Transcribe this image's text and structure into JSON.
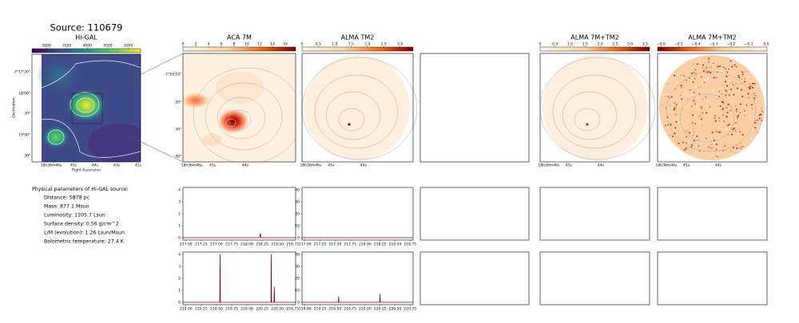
{
  "title": "Source: 110679",
  "maps": [
    {
      "title": "Hi-GAL",
      "cbar": {
        "range": [
          2650,
          5300
        ],
        "ticks": [
          3000,
          3500,
          4000,
          4500,
          5000
        ]
      },
      "yticks": [
        "-7°17'30\"",
        "18'00\"",
        "30\"",
        "19'00\"",
        "30\""
      ],
      "xticks": [
        "18h36m46s",
        "45s",
        "44s",
        "43s",
        "42s"
      ],
      "ylabel": "Declination",
      "xlabel": "Right Ascension"
    },
    {
      "title": "ACA 7M",
      "cbar": {
        "range": [
          0,
          17.6
        ],
        "ticks": [
          0,
          2,
          4,
          6,
          8,
          10,
          12,
          14,
          16
        ]
      },
      "yticks": [
        "-7°18'10\"",
        "20\"",
        "30\"",
        "40\""
      ],
      "xticks": [
        "18h36m46s",
        "45s",
        "44s"
      ]
    },
    {
      "title": "ALMA TM2",
      "cbar": {
        "range": [
          0,
          3.4
        ],
        "ticks": [
          0,
          0.5,
          {
            "value": 1,
            "label": "1.0"
          },
          1.5,
          {
            "value": 2,
            "label": "2.0"
          },
          2.5,
          {
            "value": 3,
            "label": "3.0"
          }
        ]
      },
      "xticks": [
        "18h36m46s",
        "45s",
        "44s"
      ]
    },
    {
      "title": "ALMA 7M+TM2",
      "cbar": {
        "range": [
          0,
          3.65
        ],
        "ticks": [
          0,
          0.5,
          {
            "value": 1,
            "label": "1.0"
          },
          1.5,
          {
            "value": 2,
            "label": "2.0"
          },
          2.5,
          {
            "value": 3,
            "label": "3.0"
          },
          3.5
        ]
      },
      "xticks": [
        "18h36m46s",
        "45s",
        "44s"
      ]
    },
    {
      "title": "ALMA 7M+TM2",
      "cbar": {
        "range": [
          -0.62,
          0.005
        ],
        "ticks": [
          {
            "value": -0.6,
            "label": "−0.6"
          },
          {
            "value": -0.5,
            "label": "−0.5"
          },
          {
            "value": -0.4,
            "label": "−0.4"
          },
          {
            "value": -0.3,
            "label": "−0.3"
          },
          {
            "value": -0.2,
            "label": "−0.2"
          },
          {
            "value": -0.1,
            "label": "−0.1"
          },
          {
            "value": 0,
            "label": "0.0"
          }
        ]
      },
      "xticks": [
        "18h36m46s",
        "45s",
        "44s"
      ]
    }
  ],
  "params": {
    "heading": "Physical parameters of Hi-GAL source:",
    "lines": [
      "Distance: 5878 pc",
      "Mass: 877.1 Msun",
      "Luminosity: 1105.7 Lsun",
      "Surface density: 0.56 g/cm^2",
      "L/M (evolution): 1.26 Lsun/Msun",
      "Bolometric temperature: 27.4 K"
    ]
  },
  "chart_data": [
    {
      "type": "line",
      "color": "#8b0000",
      "xlim": [
        216.95,
        218.8
      ],
      "ylim": [
        -0.2,
        4.2
      ],
      "x": [
        216.95,
        218.21,
        218.22,
        218.23,
        218.8
      ],
      "values": [
        0,
        0,
        0.35,
        0,
        0
      ],
      "yticks": [
        0,
        1,
        2,
        3,
        4
      ],
      "xticks": [
        {
          "value": 217,
          "label": "217.00"
        },
        {
          "value": 217.25,
          "label": "217.25"
        },
        {
          "value": 217.5,
          "label": "217.50"
        },
        {
          "value": 217.75,
          "label": "217.75"
        },
        {
          "value": 218,
          "label": "218.00"
        },
        {
          "value": 218.25,
          "label": "218.25"
        },
        {
          "value": 218.5,
          "label": "218.50"
        },
        {
          "value": 218.75,
          "label": "218.75"
        }
      ]
    },
    {
      "type": "line",
      "color": "#8b0000",
      "xlim": [
        216.95,
        218.8
      ],
      "ylim": [
        -2,
        42
      ],
      "x": [
        216.95,
        218.8
      ],
      "values": [
        0,
        0
      ],
      "yticks": [
        0,
        10,
        20,
        30,
        40
      ],
      "xticks": [
        {
          "value": 217,
          "label": "217.00"
        },
        {
          "value": 217.25,
          "label": "217.25"
        },
        {
          "value": 217.5,
          "label": "217.50"
        },
        {
          "value": 217.75,
          "label": "217.75"
        },
        {
          "value": 218,
          "label": "218.00"
        },
        {
          "value": 218.25,
          "label": "218.25"
        },
        {
          "value": 218.5,
          "label": "218.50"
        },
        {
          "value": 218.75,
          "label": "218.75"
        }
      ]
    },
    {
      "type": "line",
      "color": "#8b0000",
      "xlim": [
        218.95,
        220.8
      ],
      "ylim": [
        -0.2,
        4.2
      ],
      "x": [
        218.95,
        219.555,
        219.56,
        219.565,
        220.395,
        220.4,
        220.405,
        220.445,
        220.45,
        220.455,
        220.8
      ],
      "values": [
        0,
        0,
        4,
        0,
        0,
        4,
        0,
        0,
        1.3,
        0,
        0
      ],
      "yticks": [
        0,
        1,
        2,
        3,
        4
      ],
      "xticks": [
        {
          "value": 219,
          "label": "219.00"
        },
        {
          "value": 219.25,
          "label": "219.25"
        },
        {
          "value": 219.5,
          "label": "219.50"
        },
        {
          "value": 219.75,
          "label": "219.75"
        },
        {
          "value": 220,
          "label": "220.00"
        },
        {
          "value": 220.25,
          "label": "220.25"
        },
        {
          "value": 220.5,
          "label": "220.50"
        },
        {
          "value": 220.75,
          "label": "220.75"
        }
      ]
    },
    {
      "type": "line",
      "color": "#8b0000",
      "xlim": [
        218.95,
        220.8
      ],
      "ylim": [
        -2,
        42
      ],
      "x": [
        218.95,
        219.555,
        219.56,
        219.565,
        220.245,
        220.25,
        220.255,
        220.8
      ],
      "values": [
        0,
        0,
        5,
        0,
        0,
        7,
        0,
        0
      ],
      "yticks": [
        0,
        10,
        20,
        30,
        40
      ],
      "xticks": [
        {
          "value": 219,
          "label": "219.00"
        },
        {
          "value": 219.25,
          "label": "219.25"
        },
        {
          "value": 219.5,
          "label": "219.50"
        },
        {
          "value": 219.75,
          "label": "219.75"
        },
        {
          "value": 220,
          "label": "220.00"
        },
        {
          "value": 220.25,
          "label": "220.25"
        },
        {
          "value": 220.5,
          "label": "220.50"
        },
        {
          "value": 220.75,
          "label": "220.75"
        }
      ]
    }
  ]
}
